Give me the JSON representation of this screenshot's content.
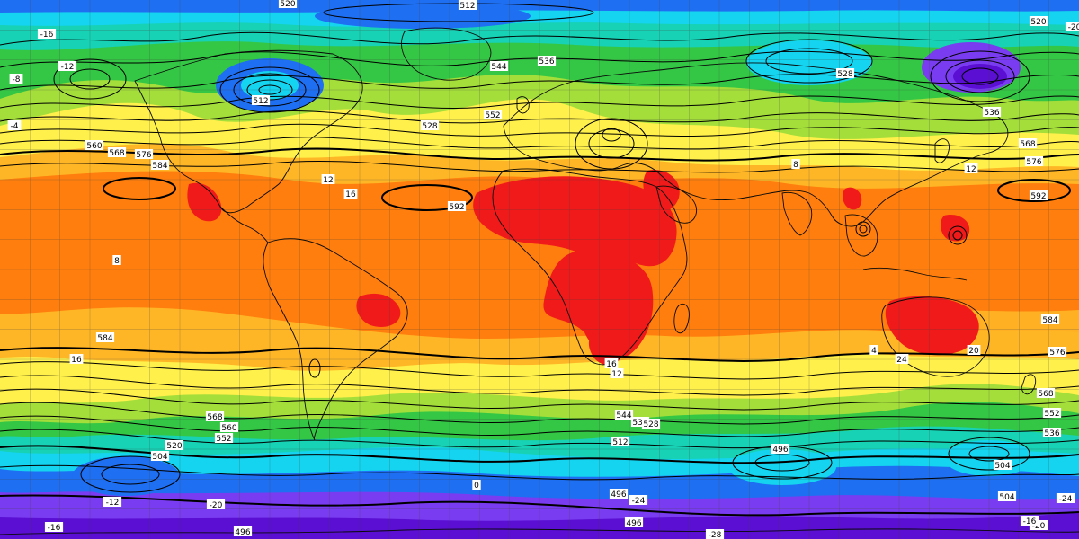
{
  "map": {
    "projection": "equirectangular",
    "gridlines": true,
    "coastlines": true,
    "fields": [
      "500 hPa geopotential height contours (black)",
      "850 hPa temperature shading (color)"
    ]
  },
  "colors": {
    "deep_violet": "#5a0fd2",
    "violet": "#7a3cf0",
    "blue": "#1f6ff2",
    "cyan": "#14d4f0",
    "teal": "#17d2b4",
    "green": "#34c745",
    "lime": "#a4de3a",
    "yellow": "#fff04b",
    "light_orange": "#ffb626",
    "orange": "#ff7e0d",
    "red": "#f01a1a",
    "contour": "#000000",
    "coast": "#0a0a0a"
  },
  "height_labels": [
    "520",
    "512",
    "536",
    "544",
    "552",
    "528",
    "584",
    "592",
    "576",
    "568",
    "560",
    "504",
    "496"
  ],
  "temp_labels": [
    "-16",
    "-12",
    "-8",
    "-4",
    "0",
    "4",
    "8",
    "12",
    "16",
    "20",
    "-20",
    "-24",
    "-28"
  ],
  "labels": [
    {
      "text": "520"
    },
    {
      "text": "512"
    },
    {
      "text": "536"
    },
    {
      "text": "544"
    },
    {
      "text": "528"
    },
    {
      "text": "552"
    },
    {
      "text": "560"
    },
    {
      "text": "568"
    },
    {
      "text": "576"
    },
    {
      "text": "584"
    },
    {
      "text": "592"
    },
    {
      "text": "512"
    },
    {
      "text": "528"
    },
    {
      "text": "536"
    },
    {
      "text": "568"
    },
    {
      "text": "576"
    },
    {
      "text": "592"
    },
    {
      "text": "520"
    },
    {
      "text": "584"
    },
    {
      "text": "576"
    },
    {
      "text": "584"
    },
    {
      "text": "568"
    },
    {
      "text": "560"
    },
    {
      "text": "552"
    },
    {
      "text": "544"
    },
    {
      "text": "536"
    },
    {
      "text": "528"
    },
    {
      "text": "520"
    },
    {
      "text": "512"
    },
    {
      "text": "504"
    },
    {
      "text": "496"
    },
    {
      "text": "504"
    },
    {
      "text": "496"
    },
    {
      "text": "496"
    },
    {
      "text": "496"
    },
    {
      "text": "504"
    },
    {
      "text": "568"
    },
    {
      "text": "552"
    },
    {
      "text": "536"
    },
    {
      "text": "-16"
    },
    {
      "text": "-12"
    },
    {
      "text": "-8"
    },
    {
      "text": "12"
    },
    {
      "text": "16"
    },
    {
      "text": "16"
    },
    {
      "text": "12"
    },
    {
      "text": "-20"
    },
    {
      "text": "-24"
    },
    {
      "text": "-28"
    },
    {
      "text": "-16"
    },
    {
      "text": "-20"
    },
    {
      "text": "-24"
    },
    {
      "text": "8"
    },
    {
      "text": "12"
    },
    {
      "text": "20"
    },
    {
      "text": "24"
    },
    {
      "text": "-12"
    },
    {
      "text": "-4"
    },
    {
      "text": "0"
    },
    {
      "text": "4"
    },
    {
      "text": "-20"
    },
    {
      "text": "-16"
    },
    {
      "text": "8"
    },
    {
      "text": "16"
    }
  ]
}
